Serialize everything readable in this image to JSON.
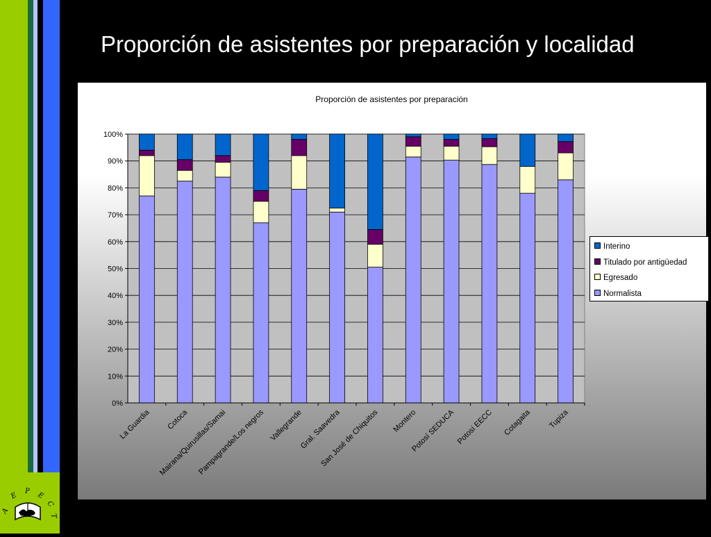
{
  "slide": {
    "title": "Proporción de asistentes por preparación y localidad",
    "logo_text": "AEPECT"
  },
  "colors": {
    "stripe_green": "#9acd00",
    "stripe_blue": "#3366ff",
    "interino": "#0066cc",
    "titulado": "#660066",
    "egresado": "#ffffcc",
    "normalista": "#9999ff",
    "plot_bg": "#c0c0c0"
  },
  "chart_data": {
    "type": "bar",
    "stacked": "percent",
    "title": "Proporción de asistentes por preparación",
    "categories": [
      "La Guardia",
      "Cotoca",
      "Mairana/Quirusillas/Samai",
      "Pampagrande/Los negros",
      "Vallegrande",
      "Gral. Saavedra",
      "San José de Chiquitos",
      "Montero",
      "Potosí SEDUCA",
      "Potosí EECC",
      "Cotagaita",
      "Tupiza"
    ],
    "series": [
      {
        "name": "Normalista",
        "color": "#9999ff",
        "values": [
          77,
          82.5,
          84,
          67,
          79.5,
          71,
          50.5,
          91.5,
          90.3,
          88.7,
          78,
          83
        ]
      },
      {
        "name": "Egresado",
        "color": "#ffffcc",
        "values": [
          15,
          4,
          5.5,
          8,
          12.5,
          1.5,
          8.5,
          4,
          5.2,
          6.6,
          10,
          10
        ]
      },
      {
        "name": "Titulado por antigüedad",
        "color": "#660066",
        "values": [
          2,
          4,
          2.5,
          4,
          6,
          0,
          5.5,
          3.5,
          2.5,
          3,
          0,
          4.2
        ]
      },
      {
        "name": "Interino",
        "color": "#0066cc",
        "values": [
          6,
          9.5,
          8,
          21,
          2,
          27.5,
          35.5,
          1,
          2,
          1.7,
          12,
          2.8
        ]
      }
    ],
    "legend_order": [
      "Interino",
      "Titulado por antigüedad",
      "Egresado",
      "Normalista"
    ],
    "y_ticks": [
      "0%",
      "10%",
      "20%",
      "30%",
      "40%",
      "50%",
      "60%",
      "70%",
      "80%",
      "90%",
      "100%"
    ],
    "ylim": [
      0,
      100
    ],
    "grid": true,
    "legend_position": "right"
  }
}
